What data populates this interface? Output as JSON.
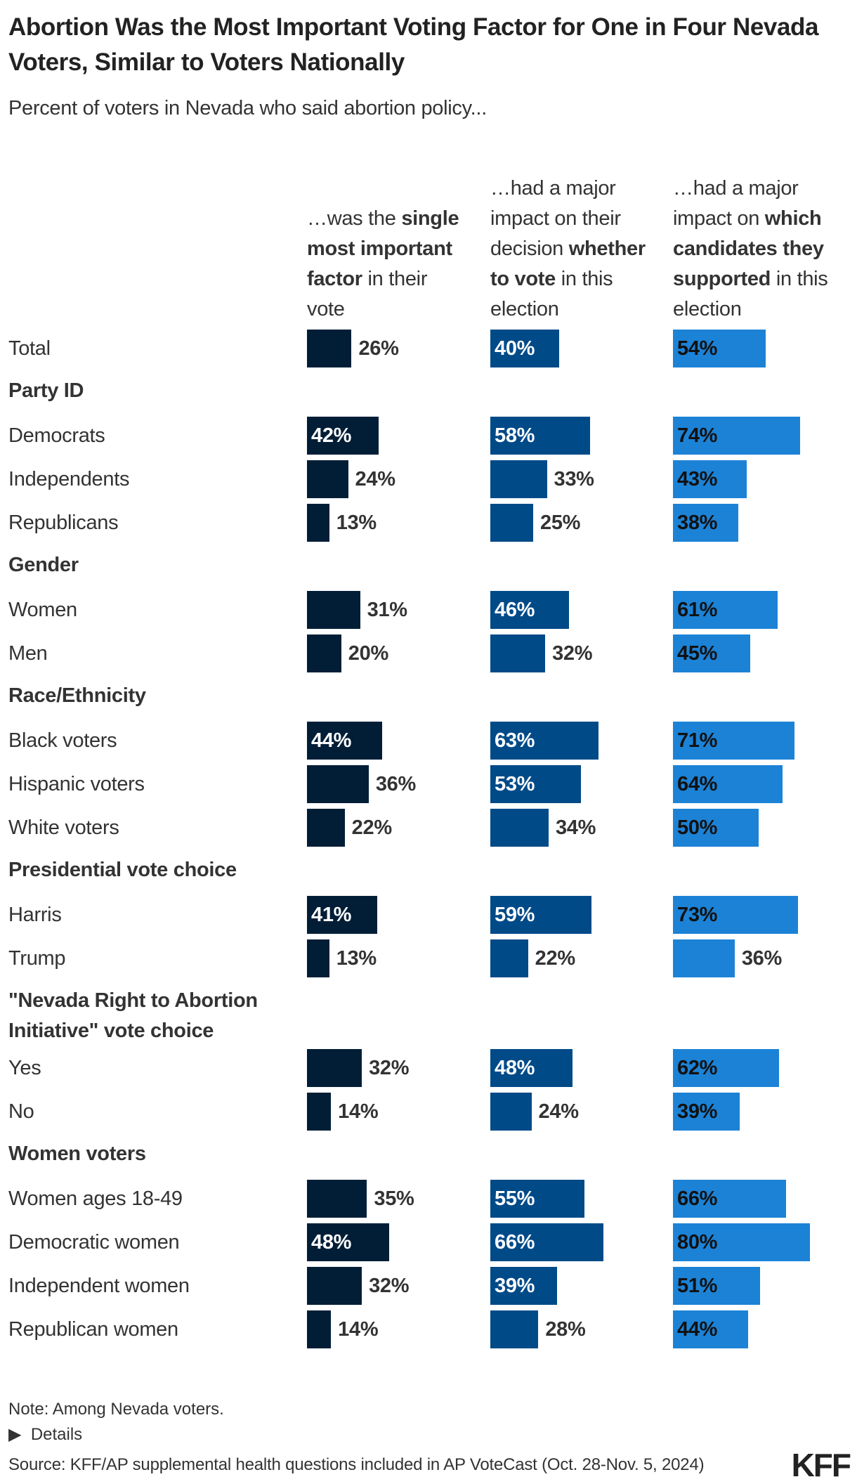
{
  "title": "Abortion Was the Most Important Voting Factor for One in Four Nevada Voters, Similar to Voters Nationally",
  "subtitle": "Percent of voters in Nevada who said abortion policy...",
  "chart_data": {
    "type": "bar",
    "orientation": "horizontal",
    "columns": [
      {
        "parts": [
          {
            "t": "…was the ",
            "b": false
          },
          {
            "t": "single most important factor",
            "b": true
          },
          {
            "t": " in their vote",
            "b": false
          }
        ],
        "color": "#011e36",
        "label_inside_color": "#ffffff"
      },
      {
        "parts": [
          {
            "t": "…had a major impact on their decision ",
            "b": false
          },
          {
            "t": "whether to vote",
            "b": true
          },
          {
            "t": " in this election",
            "b": false
          }
        ],
        "color": "#004a88",
        "label_inside_color": "#ffffff"
      },
      {
        "parts": [
          {
            "t": "…had a major impact on ",
            "b": false
          },
          {
            "t": "which candidates they supported",
            "b": true
          },
          {
            "t": " in this election",
            "b": false
          }
        ],
        "color": "#1c82d6",
        "label_inside_color": "#111111"
      }
    ],
    "value_suffix": "%",
    "xlim": [
      0,
      100
    ],
    "rows": [
      {
        "label": "Total",
        "values": [
          26,
          40,
          54
        ]
      },
      {
        "group": "Party ID"
      },
      {
        "label": "Democrats",
        "values": [
          42,
          58,
          74
        ]
      },
      {
        "label": "Independents",
        "values": [
          24,
          33,
          43
        ]
      },
      {
        "label": "Republicans",
        "values": [
          13,
          25,
          38
        ]
      },
      {
        "group": "Gender"
      },
      {
        "label": "Women",
        "values": [
          31,
          46,
          61
        ]
      },
      {
        "label": "Men",
        "values": [
          20,
          32,
          45
        ]
      },
      {
        "group": "Race/Ethnicity"
      },
      {
        "label": "Black voters",
        "values": [
          44,
          63,
          71
        ]
      },
      {
        "label": "Hispanic voters",
        "values": [
          36,
          53,
          64
        ]
      },
      {
        "label": "White voters",
        "values": [
          22,
          34,
          50
        ]
      },
      {
        "group": "Presidential vote choice"
      },
      {
        "label": "Harris",
        "values": [
          41,
          59,
          73
        ]
      },
      {
        "label": "Trump",
        "values": [
          13,
          22,
          36
        ]
      },
      {
        "group": "\"Nevada Right to Abortion Initiative\" vote choice"
      },
      {
        "label": "Yes",
        "values": [
          32,
          48,
          62
        ]
      },
      {
        "label": "No",
        "values": [
          14,
          24,
          39
        ]
      },
      {
        "group": "Women voters"
      },
      {
        "label": "Women ages 18-49",
        "values": [
          35,
          55,
          66
        ]
      },
      {
        "label": "Democratic women",
        "values": [
          48,
          66,
          80
        ]
      },
      {
        "label": "Independent women",
        "values": [
          32,
          39,
          51
        ]
      },
      {
        "label": "Republican women",
        "values": [
          14,
          28,
          44
        ]
      }
    ]
  },
  "footer": {
    "note": "Note: Among Nevada voters.",
    "details": "Details",
    "source": "Source: KFF/AP supplemental health questions included in AP VoteCast (Oct. 28-Nov. 5, 2024)",
    "logo": "KFF"
  }
}
